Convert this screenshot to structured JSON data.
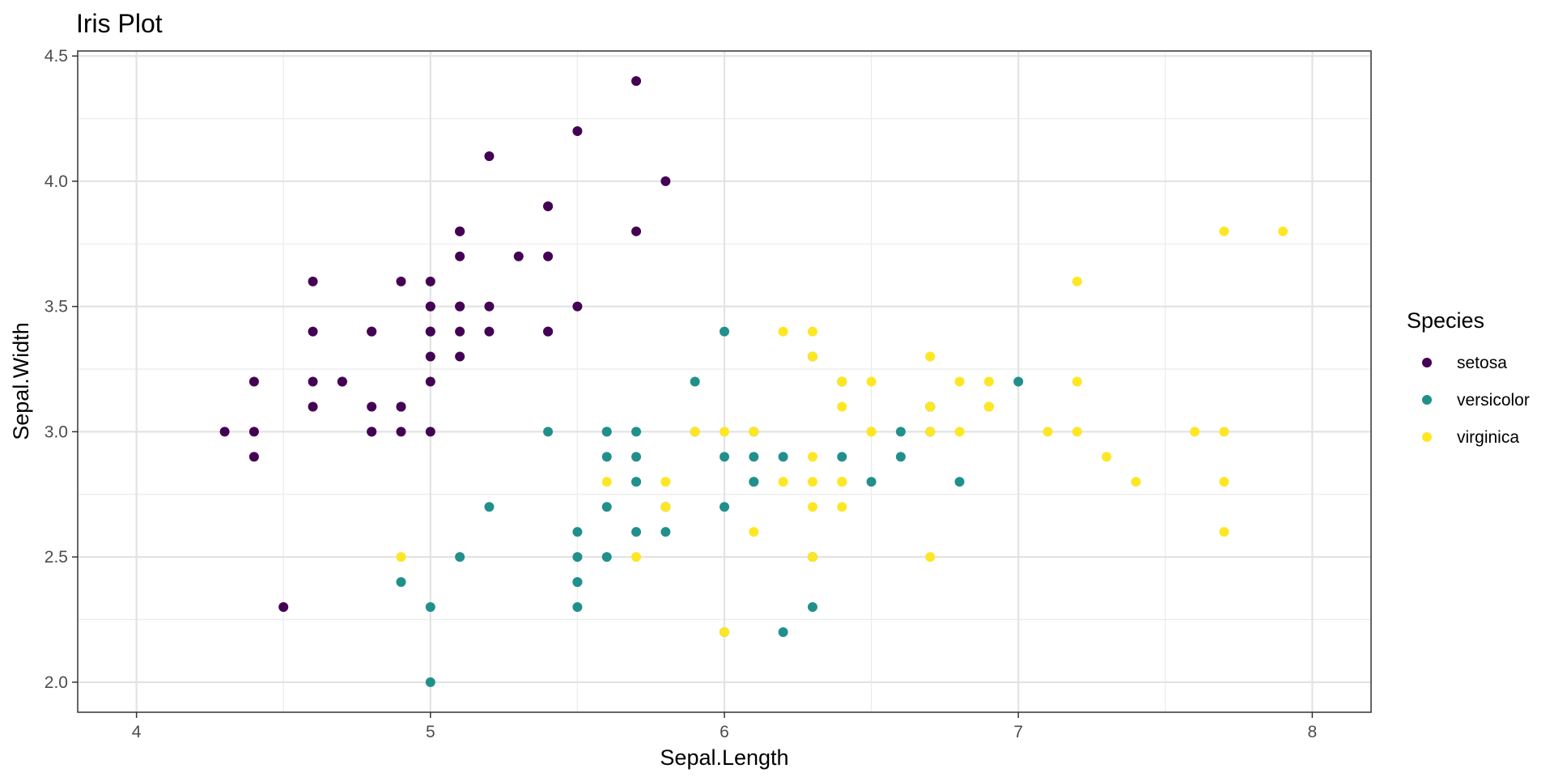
{
  "chart_data": {
    "type": "scatter",
    "title": "Iris Plot",
    "xlabel": "Sepal.Length",
    "ylabel": "Sepal.Width",
    "xlim": [
      3.8,
      8.2
    ],
    "ylim": [
      1.88,
      4.52
    ],
    "x_ticks": [
      4,
      5,
      6,
      7,
      8
    ],
    "x_tick_labels": [
      "4",
      "5",
      "6",
      "7",
      "8"
    ],
    "y_ticks": [
      2.0,
      2.5,
      3.0,
      3.5,
      4.0,
      4.5
    ],
    "y_tick_labels": [
      "2.0",
      "2.5",
      "3.0",
      "3.5",
      "4.0",
      "4.5"
    ],
    "grid": true,
    "legend": {
      "title": "Species",
      "placement": "right"
    },
    "series": [
      {
        "name": "setosa",
        "color": "#440154",
        "points": [
          [
            5.1,
            3.5
          ],
          [
            4.9,
            3.0
          ],
          [
            4.7,
            3.2
          ],
          [
            4.6,
            3.1
          ],
          [
            5.0,
            3.6
          ],
          [
            5.4,
            3.9
          ],
          [
            4.6,
            3.4
          ],
          [
            5.0,
            3.4
          ],
          [
            4.4,
            2.9
          ],
          [
            4.9,
            3.1
          ],
          [
            5.4,
            3.7
          ],
          [
            4.8,
            3.4
          ],
          [
            4.8,
            3.0
          ],
          [
            4.3,
            3.0
          ],
          [
            5.8,
            4.0
          ],
          [
            5.7,
            4.4
          ],
          [
            5.4,
            3.9
          ],
          [
            5.1,
            3.5
          ],
          [
            5.7,
            3.8
          ],
          [
            5.1,
            3.8
          ],
          [
            5.4,
            3.4
          ],
          [
            5.1,
            3.7
          ],
          [
            4.6,
            3.6
          ],
          [
            5.1,
            3.3
          ],
          [
            4.8,
            3.4
          ],
          [
            5.0,
            3.0
          ],
          [
            5.0,
            3.4
          ],
          [
            5.2,
            3.5
          ],
          [
            5.2,
            3.4
          ],
          [
            4.7,
            3.2
          ],
          [
            4.8,
            3.1
          ],
          [
            5.4,
            3.4
          ],
          [
            5.2,
            4.1
          ],
          [
            5.5,
            4.2
          ],
          [
            4.9,
            3.1
          ],
          [
            5.0,
            3.2
          ],
          [
            5.5,
            3.5
          ],
          [
            4.9,
            3.6
          ],
          [
            4.4,
            3.0
          ],
          [
            5.1,
            3.4
          ],
          [
            5.0,
            3.5
          ],
          [
            4.5,
            2.3
          ],
          [
            4.4,
            3.2
          ],
          [
            5.0,
            3.5
          ],
          [
            5.1,
            3.8
          ],
          [
            4.8,
            3.0
          ],
          [
            5.1,
            3.8
          ],
          [
            4.6,
            3.2
          ],
          [
            5.3,
            3.7
          ],
          [
            5.0,
            3.3
          ]
        ]
      },
      {
        "name": "versicolor",
        "color": "#21908c",
        "points": [
          [
            7.0,
            3.2
          ],
          [
            6.4,
            3.2
          ],
          [
            6.9,
            3.1
          ],
          [
            5.5,
            2.3
          ],
          [
            6.5,
            2.8
          ],
          [
            5.7,
            2.8
          ],
          [
            6.3,
            3.3
          ],
          [
            4.9,
            2.4
          ],
          [
            6.6,
            2.9
          ],
          [
            5.2,
            2.7
          ],
          [
            5.0,
            2.0
          ],
          [
            5.9,
            3.0
          ],
          [
            6.0,
            2.2
          ],
          [
            6.1,
            2.9
          ],
          [
            5.6,
            2.9
          ],
          [
            6.7,
            3.1
          ],
          [
            5.6,
            3.0
          ],
          [
            5.8,
            2.7
          ],
          [
            6.2,
            2.2
          ],
          [
            5.6,
            2.5
          ],
          [
            5.9,
            3.2
          ],
          [
            6.1,
            2.8
          ],
          [
            6.3,
            2.5
          ],
          [
            6.1,
            2.8
          ],
          [
            6.4,
            2.9
          ],
          [
            6.6,
            3.0
          ],
          [
            6.8,
            2.8
          ],
          [
            6.7,
            3.0
          ],
          [
            6.0,
            2.9
          ],
          [
            5.7,
            2.6
          ],
          [
            5.5,
            2.4
          ],
          [
            5.5,
            2.4
          ],
          [
            5.8,
            2.7
          ],
          [
            6.0,
            2.7
          ],
          [
            5.4,
            3.0
          ],
          [
            6.0,
            3.4
          ],
          [
            6.7,
            3.1
          ],
          [
            6.3,
            2.3
          ],
          [
            5.6,
            3.0
          ],
          [
            5.5,
            2.5
          ],
          [
            5.5,
            2.6
          ],
          [
            6.1,
            3.0
          ],
          [
            5.8,
            2.6
          ],
          [
            5.0,
            2.3
          ],
          [
            5.6,
            2.7
          ],
          [
            5.7,
            3.0
          ],
          [
            5.7,
            2.9
          ],
          [
            6.2,
            2.9
          ],
          [
            5.1,
            2.5
          ],
          [
            5.7,
            2.8
          ]
        ]
      },
      {
        "name": "virginica",
        "color": "#fde725",
        "points": [
          [
            6.3,
            3.3
          ],
          [
            5.8,
            2.7
          ],
          [
            7.1,
            3.0
          ],
          [
            6.3,
            2.9
          ],
          [
            6.5,
            3.0
          ],
          [
            7.6,
            3.0
          ],
          [
            4.9,
            2.5
          ],
          [
            7.3,
            2.9
          ],
          [
            6.7,
            2.5
          ],
          [
            7.2,
            3.6
          ],
          [
            6.5,
            3.2
          ],
          [
            6.4,
            2.7
          ],
          [
            6.8,
            3.0
          ],
          [
            5.7,
            2.5
          ],
          [
            5.8,
            2.8
          ],
          [
            6.4,
            3.2
          ],
          [
            6.5,
            3.0
          ],
          [
            7.7,
            3.8
          ],
          [
            7.7,
            2.6
          ],
          [
            6.0,
            2.2
          ],
          [
            6.9,
            3.2
          ],
          [
            5.6,
            2.8
          ],
          [
            7.7,
            2.8
          ],
          [
            6.3,
            2.7
          ],
          [
            6.7,
            3.3
          ],
          [
            7.2,
            3.2
          ],
          [
            6.2,
            2.8
          ],
          [
            6.1,
            3.0
          ],
          [
            6.4,
            2.8
          ],
          [
            7.2,
            3.0
          ],
          [
            7.4,
            2.8
          ],
          [
            7.9,
            3.8
          ],
          [
            6.4,
            2.8
          ],
          [
            6.3,
            2.8
          ],
          [
            6.1,
            2.6
          ],
          [
            7.7,
            3.0
          ],
          [
            6.3,
            3.4
          ],
          [
            6.4,
            3.1
          ],
          [
            6.0,
            3.0
          ],
          [
            6.9,
            3.1
          ],
          [
            6.7,
            3.1
          ],
          [
            6.9,
            3.1
          ],
          [
            5.8,
            2.7
          ],
          [
            6.8,
            3.2
          ],
          [
            6.7,
            3.3
          ],
          [
            6.7,
            3.0
          ],
          [
            6.3,
            2.5
          ],
          [
            6.5,
            3.0
          ],
          [
            6.2,
            3.4
          ],
          [
            5.9,
            3.0
          ]
        ]
      }
    ]
  }
}
